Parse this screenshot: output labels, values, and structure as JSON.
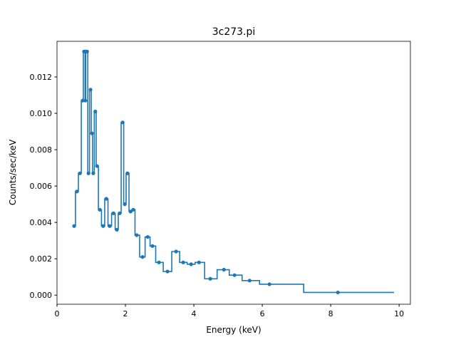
{
  "chart_data": {
    "type": "line",
    "title": "3c273.pi",
    "xlabel": "Energy (keV)",
    "ylabel": "Counts/sec/keV",
    "xlim": [
      0,
      10.33
    ],
    "ylim": [
      -0.0005,
      0.01396
    ],
    "xticks": [
      0,
      2,
      4,
      6,
      8,
      10
    ],
    "xtick_labels": [
      "0",
      "2",
      "4",
      "6",
      "8",
      "10"
    ],
    "yticks": [
      0,
      0.002,
      0.004,
      0.006,
      0.008,
      0.01,
      0.012
    ],
    "ytick_labels": [
      "0.000",
      "0.002",
      "0.004",
      "0.006",
      "0.008",
      "0.010",
      "0.012"
    ],
    "x_end": 9.85,
    "color": "#1f77b4",
    "series": [
      {
        "name": "3c273.pi",
        "x": [
          0.5,
          0.58,
          0.67,
          0.75,
          0.79,
          0.81,
          0.83,
          0.85,
          0.88,
          0.92,
          0.98,
          1.02,
          1.06,
          1.12,
          1.17,
          1.25,
          1.35,
          1.44,
          1.54,
          1.65,
          1.75,
          1.83,
          1.92,
          1.98,
          2.06,
          2.15,
          2.23,
          2.33,
          2.5,
          2.65,
          2.79,
          2.98,
          3.23,
          3.48,
          3.69,
          3.92,
          4.15,
          4.48,
          4.88,
          5.19,
          5.63,
          6.21,
          8.21
        ],
        "y": [
          0.0038,
          0.0057,
          0.0067,
          0.0107,
          0.0134,
          0.0134,
          0.0107,
          0.0134,
          0.0134,
          0.0067,
          0.0113,
          0.0089,
          0.0067,
          0.0101,
          0.0071,
          0.0047,
          0.0038,
          0.0053,
          0.0038,
          0.0045,
          0.0036,
          0.0045,
          0.0095,
          0.005,
          0.0067,
          0.0046,
          0.0047,
          0.0033,
          0.0021,
          0.0032,
          0.0027,
          0.0018,
          0.0013,
          0.0024,
          0.0018,
          0.0017,
          0.0018,
          0.0009,
          0.0014,
          0.0011,
          0.0008,
          0.0006,
          0.00015
        ]
      }
    ]
  }
}
